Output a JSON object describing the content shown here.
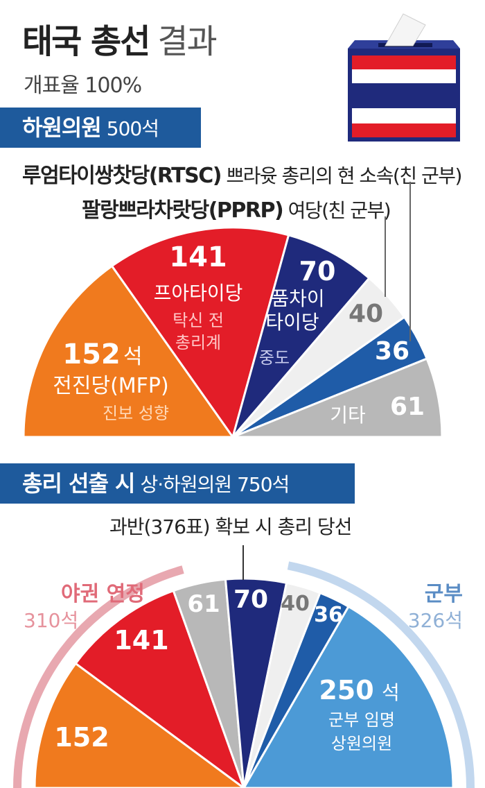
{
  "title": "태국 총선",
  "title_light": "결과",
  "subtitle": "개표율 100%",
  "lower_house": {
    "banner_label": "하원의원",
    "banner_seats": "500석",
    "note_rtsc_name": "루엄타이쌍찻당(RTSC)",
    "note_rtsc_desc": "쁘라윳 총리의 현 소속(친 군부)",
    "note_pprp_name": "팔랑쁘라차랏당(PPRP)",
    "note_pprp_desc": "여당(친 군부)"
  },
  "pm_vote": {
    "banner_label": "총리 선출 시",
    "banner_detail": "상·하원의원 750석",
    "majority_note": "과반(376표) 확보 시 총리 당선",
    "opposition_label": "야권 연정",
    "opposition_seats": "310석",
    "military_label": "군부",
    "military_seats": "326석"
  },
  "chart_data": [
    {
      "type": "pie",
      "title": "하원의원 500석",
      "total": 500,
      "start": "left",
      "segments": [
        {
          "value": 152,
          "label": "152",
          "unit": "석",
          "party": "전진당(MFP)",
          "desc": "진보 성향",
          "color": "#f07a1e"
        },
        {
          "value": 141,
          "label": "141",
          "party": "프아타이당",
          "desc": "탁신 전 총리계",
          "desc_lines": [
            "탁신 전",
            "총리계"
          ],
          "color": "#e31d28"
        },
        {
          "value": 70,
          "label": "70",
          "party": "품차이 타이당",
          "party_lines": [
            "품차이",
            "타이당"
          ],
          "desc": "중도",
          "color": "#1f2a7c"
        },
        {
          "value": 40,
          "label": "40",
          "party": "팔랑쁘라차랏당(PPRP)",
          "color": "#efefef"
        },
        {
          "value": 36,
          "label": "36",
          "party": "루엄타이쌍찻당(RTSC)",
          "color": "#1f5ca8"
        },
        {
          "value": 61,
          "label": "61",
          "party": "기타",
          "color": "#b8b8b8"
        }
      ]
    },
    {
      "type": "pie",
      "title": "총리 선출 시 상·하원의원 750석",
      "total": 750,
      "start": "left",
      "segments": [
        {
          "value": 152,
          "label": "152",
          "color": "#f07a1e"
        },
        {
          "value": 141,
          "label": "141",
          "color": "#e31d28"
        },
        {
          "value": 61,
          "label": "61",
          "color": "#b8b8b8"
        },
        {
          "value": 70,
          "label": "70",
          "color": "#1f2a7c"
        },
        {
          "value": 40,
          "label": "40",
          "color": "#efefef"
        },
        {
          "value": 36,
          "label": "36",
          "color": "#1f5ca8"
        },
        {
          "value": 250,
          "label": "250",
          "unit": "석",
          "desc": "군부 임명 상원의원",
          "desc_lines": [
            "군부 임명",
            "상원의원"
          ],
          "color": "#4c9ad6"
        }
      ]
    }
  ],
  "colors": {
    "banner": "#1e5a9c",
    "opposition_arc": "#e8a8b0",
    "military_arc": "#c2d7ee"
  }
}
